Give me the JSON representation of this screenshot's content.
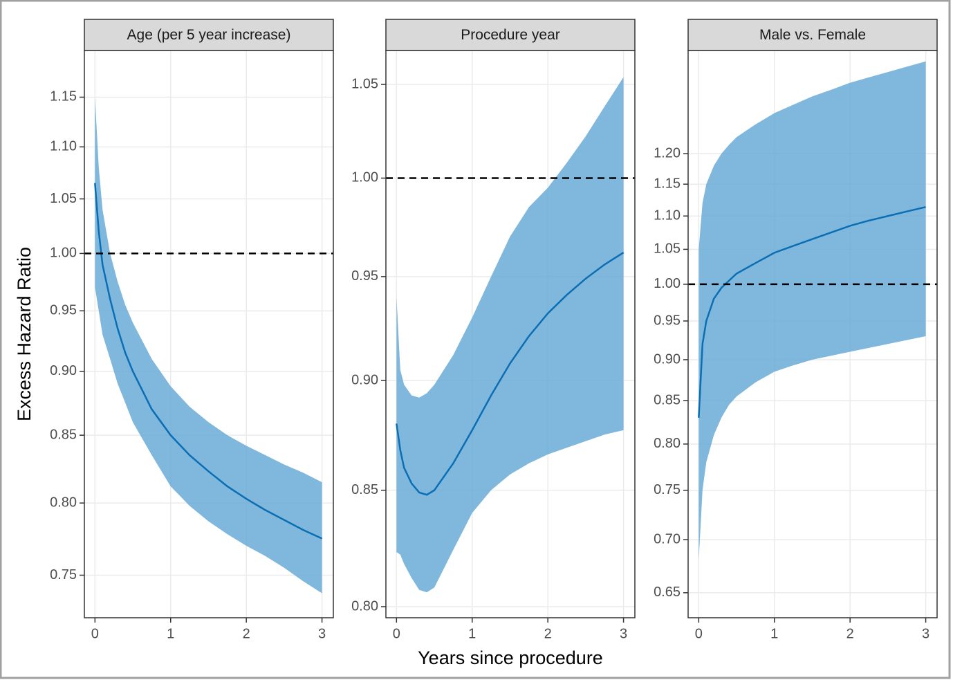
{
  "chart_data": [
    {
      "type": "line",
      "title": "Age (per 5 year increase)",
      "y_label": "Excess Hazard Ratio",
      "x": [
        0,
        0.05,
        0.1,
        0.2,
        0.3,
        0.4,
        0.5,
        0.75,
        1,
        1.25,
        1.5,
        1.75,
        2,
        2.25,
        2.5,
        2.75,
        3
      ],
      "values": [
        1.065,
        1.02,
        0.99,
        0.96,
        0.935,
        0.915,
        0.9,
        0.87,
        0.85,
        0.835,
        0.823,
        0.812,
        0.803,
        0.795,
        0.788,
        0.781,
        0.775
      ],
      "upper": [
        1.15,
        1.08,
        1.04,
        1.0,
        0.975,
        0.955,
        0.94,
        0.91,
        0.888,
        0.872,
        0.86,
        0.85,
        0.842,
        0.835,
        0.828,
        0.822,
        0.815
      ],
      "lower": [
        0.97,
        0.95,
        0.93,
        0.91,
        0.89,
        0.875,
        0.86,
        0.835,
        0.812,
        0.798,
        0.787,
        0.778,
        0.77,
        0.763,
        0.755,
        0.746,
        0.738
      ],
      "color": "#0a6eb4",
      "band_color": "#6aaad6",
      "hline": 1,
      "log_y": true,
      "grid": true,
      "xlim": [
        -0.14,
        3.15
      ],
      "xticks": [
        0,
        1,
        2,
        3
      ],
      "ylim": [
        0.722,
        1.199
      ],
      "yticks": [
        {
          "value": 0.75,
          "label": "0.75"
        },
        {
          "value": 0.8,
          "label": "0.80"
        },
        {
          "value": 0.85,
          "label": "0.85"
        },
        {
          "value": 0.9,
          "label": "0.90"
        },
        {
          "value": 0.95,
          "label": "0.95"
        },
        {
          "value": 1,
          "label": "1.00"
        },
        {
          "value": 1.05,
          "label": "1.05"
        },
        {
          "value": 1.1,
          "label": "1.10"
        },
        {
          "value": 1.15,
          "label": "1.15"
        }
      ]
    },
    {
      "type": "line",
      "title": "Procedure year",
      "x_label": "Years since procedure",
      "x": [
        0,
        0.05,
        0.1,
        0.2,
        0.3,
        0.4,
        0.5,
        0.75,
        1,
        1.25,
        1.5,
        1.75,
        2,
        2.25,
        2.5,
        2.75,
        3
      ],
      "values": [
        0.88,
        0.868,
        0.86,
        0.853,
        0.849,
        0.848,
        0.85,
        0.862,
        0.877,
        0.893,
        0.908,
        0.921,
        0.932,
        0.941,
        0.949,
        0.956,
        0.962
      ],
      "upper": [
        0.94,
        0.905,
        0.898,
        0.893,
        0.892,
        0.894,
        0.898,
        0.912,
        0.93,
        0.95,
        0.97,
        0.985,
        0.995,
        1.008,
        1.022,
        1.038,
        1.054
      ],
      "lower": [
        0.823,
        0.822,
        0.818,
        0.812,
        0.807,
        0.806,
        0.808,
        0.824,
        0.84,
        0.85,
        0.857,
        0.862,
        0.866,
        0.869,
        0.872,
        0.875,
        0.877
      ],
      "color": "#0a6eb4",
      "band_color": "#6aaad6",
      "hline": 1,
      "log_y": true,
      "grid": true,
      "xlim": [
        -0.14,
        3.15
      ],
      "xticks": [
        0,
        1,
        2,
        3
      ],
      "ylim": [
        0.7954,
        1.0687
      ],
      "yticks": [
        {
          "value": 0.8,
          "label": "0.80"
        },
        {
          "value": 0.85,
          "label": "0.85"
        },
        {
          "value": 0.9,
          "label": "0.90"
        },
        {
          "value": 0.95,
          "label": "0.95"
        },
        {
          "value": 1,
          "label": "1.00"
        },
        {
          "value": 1.05,
          "label": "1.05"
        }
      ]
    },
    {
      "type": "line",
      "title": "Male vs. Female",
      "x": [
        0,
        0.05,
        0.1,
        0.2,
        0.3,
        0.4,
        0.5,
        0.75,
        1,
        1.25,
        1.5,
        1.75,
        2,
        2.25,
        2.5,
        2.75,
        3
      ],
      "values": [
        0.83,
        0.92,
        0.95,
        0.98,
        0.995,
        1.005,
        1.015,
        1.03,
        1.045,
        1.055,
        1.065,
        1.075,
        1.085,
        1.093,
        1.1,
        1.107,
        1.114
      ],
      "upper": [
        1.05,
        1.12,
        1.15,
        1.18,
        1.2,
        1.215,
        1.228,
        1.25,
        1.27,
        1.285,
        1.3,
        1.312,
        1.325,
        1.335,
        1.345,
        1.355,
        1.365
      ],
      "lower": [
        0.68,
        0.75,
        0.78,
        0.81,
        0.83,
        0.845,
        0.855,
        0.872,
        0.885,
        0.893,
        0.9,
        0.905,
        0.91,
        0.915,
        0.92,
        0.925,
        0.93
      ],
      "color": "#0a6eb4",
      "band_color": "#6aaad6",
      "hline": 1,
      "log_y": true,
      "grid": true,
      "xlim": [
        -0.14,
        3.15
      ],
      "xticks": [
        0,
        1,
        2,
        3
      ],
      "ylim": [
        0.6277,
        1.386
      ],
      "yticks": [
        {
          "value": 0.65,
          "label": "0.65"
        },
        {
          "value": 0.7,
          "label": "0.70"
        },
        {
          "value": 0.75,
          "label": "0.75"
        },
        {
          "value": 0.8,
          "label": "0.80"
        },
        {
          "value": 0.85,
          "label": "0.85"
        },
        {
          "value": 0.9,
          "label": "0.90"
        },
        {
          "value": 0.95,
          "label": "0.95"
        },
        {
          "value": 1,
          "label": "1.00"
        },
        {
          "value": 1.05,
          "label": "1.05"
        },
        {
          "value": 1.1,
          "label": "1.10"
        },
        {
          "value": 1.15,
          "label": "1.15"
        },
        {
          "value": 1.2,
          "label": "1.20"
        }
      ]
    }
  ]
}
